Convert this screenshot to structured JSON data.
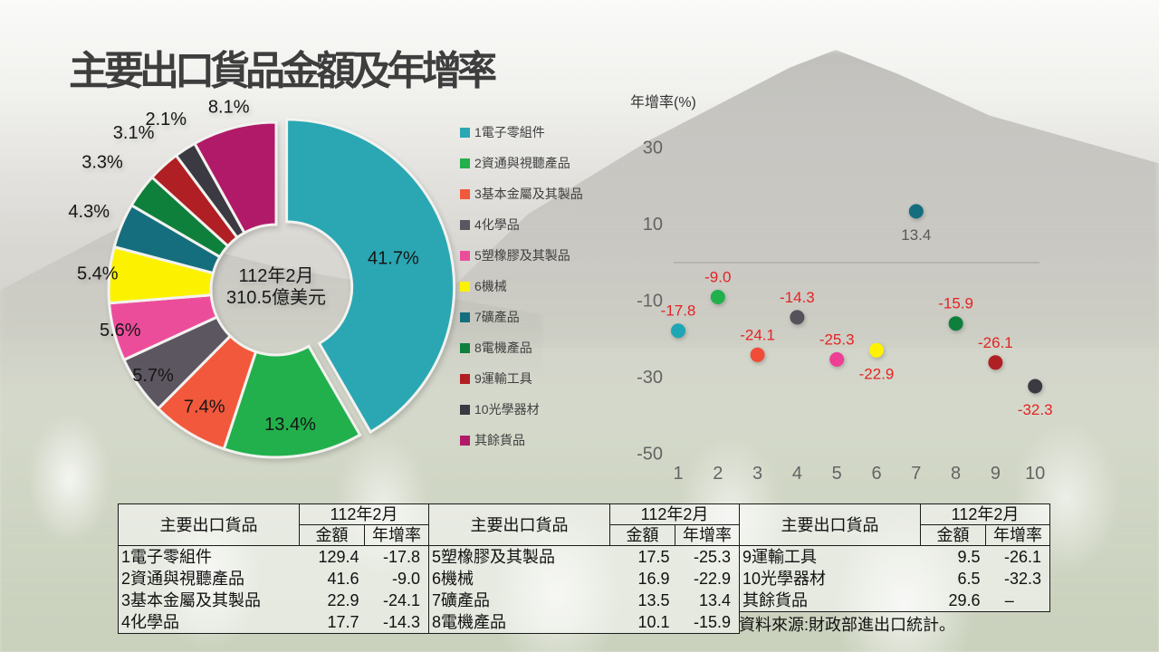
{
  "slide": {
    "title": "主要出口貨品金額及年增率"
  },
  "donut_center": {
    "line1": "112年2月",
    "line2": "310.5億美元"
  },
  "chart_data": [
    {
      "type": "pie",
      "subtype": "donut",
      "center_label_line1": "112年2月",
      "center_label_line2": "310.5億美元",
      "slices": [
        {
          "label": "1電子零組件",
          "pct": 41.7,
          "color": "#2AA7B3",
          "label_r": 122,
          "explode": 12
        },
        {
          "label": "2資通與視聽產品",
          "pct": 13.4,
          "color": "#22B04C",
          "label_r": 150,
          "explode": 0
        },
        {
          "label": "3基本金屬及其製品",
          "pct": 7.4,
          "color": "#F2583C",
          "label_r": 152,
          "explode": 0
        },
        {
          "label": "4化學品",
          "pct": 5.7,
          "color": "#5C5660",
          "label_r": 166,
          "explode": 0
        },
        {
          "label": "5塑橡膠及其製品",
          "pct": 5.6,
          "color": "#EC4D9B",
          "label_r": 178,
          "explode": 0
        },
        {
          "label": "6機械",
          "pct": 5.4,
          "color": "#FCF200",
          "label_r": 198,
          "explode": 0
        },
        {
          "label": "7礦產品",
          "pct": 4.3,
          "color": "#156E7D",
          "label_r": 224,
          "explode": 0
        },
        {
          "label": "8電機產品",
          "pct": 3.3,
          "color": "#0F7F3C",
          "label_r": 238,
          "explode": 0
        },
        {
          "label": "9運輸工具",
          "pct": 3.1,
          "color": "#B01F24",
          "label_r": 234,
          "explode": 0
        },
        {
          "label": "10光學器材",
          "pct": 2.1,
          "color": "#3B3A43",
          "label_r": 224,
          "explode": 0
        },
        {
          "label": "其餘貨品",
          "pct": 8.1,
          "color": "#B11A68",
          "label_r": 208,
          "explode": 0
        }
      ]
    },
    {
      "type": "scatter",
      "ylabel": "年增率(%)",
      "yticks": [
        30,
        10,
        -10,
        -30,
        -50
      ],
      "ylim": [
        -55,
        38
      ],
      "xticks": [
        1,
        2,
        3,
        4,
        5,
        6,
        7,
        8,
        9,
        10
      ],
      "grid": "zero-line-only",
      "neg_label_color": "#E32424",
      "points": [
        {
          "x": 1,
          "y": -17.8,
          "label": "-17.8",
          "color": "#1FA6B4",
          "label_pos": "above"
        },
        {
          "x": 2,
          "y": -9.0,
          "label": "-9.0",
          "color": "#22B04C",
          "label_pos": "above"
        },
        {
          "x": 3,
          "y": -24.1,
          "label": "-24.1",
          "color": "#F04C38",
          "label_pos": "above"
        },
        {
          "x": 4,
          "y": -14.3,
          "label": "-14.3",
          "color": "#55525B",
          "label_pos": "above"
        },
        {
          "x": 5,
          "y": -25.3,
          "label": "-25.3",
          "color": "#EE3E96",
          "label_pos": "above"
        },
        {
          "x": 6,
          "y": -22.9,
          "label": "-22.9",
          "color": "#FFF200",
          "label_pos": "below"
        },
        {
          "x": 7,
          "y": 13.4,
          "label": "13.4",
          "color": "#156E7D",
          "label_pos": "below",
          "label_color": "#595959"
        },
        {
          "x": 8,
          "y": -15.9,
          "label": "-15.9",
          "color": "#0F7F3C",
          "label_pos": "above"
        },
        {
          "x": 9,
          "y": -26.1,
          "label": "-26.1",
          "color": "#B01F24",
          "label_pos": "above"
        },
        {
          "x": 10,
          "y": -32.3,
          "label": "-32.3",
          "color": "#3B3A43",
          "label_pos": "below"
        }
      ]
    }
  ],
  "tables": [
    {
      "name_header": "主要出口貨品",
      "period_header": "112年2月",
      "col_headers": [
        "金額",
        "年增率"
      ],
      "rows": [
        [
          "1電子零組件",
          "129.4",
          "-17.8"
        ],
        [
          "2資通與視聽產品",
          "41.6",
          "-9.0"
        ],
        [
          "3基本金屬及其製品",
          "22.9",
          "-24.1"
        ],
        [
          "4化學品",
          "17.7",
          "-14.3"
        ]
      ]
    },
    {
      "name_header": "主要出口貨品",
      "period_header": "112年2月",
      "col_headers": [
        "金額",
        "年增率"
      ],
      "rows": [
        [
          "5塑橡膠及其製品",
          "17.5",
          "-25.3"
        ],
        [
          "6機械",
          "16.9",
          "-22.9"
        ],
        [
          "7礦產品",
          "13.5",
          "13.4"
        ],
        [
          "8電機產品",
          "10.1",
          "-15.9"
        ]
      ]
    },
    {
      "name_header": "主要出口貨品",
      "period_header": "112年2月",
      "col_headers": [
        "金額",
        "年增率"
      ],
      "rows": [
        [
          "9運輸工具",
          "9.5",
          "-26.1"
        ],
        [
          "10光學器材",
          "6.5",
          "-32.3"
        ],
        [
          "其餘貨品",
          "29.6",
          "–"
        ]
      ],
      "source_note": "資料來源:財政部進出口統計。"
    }
  ],
  "colors": {
    "title_text": "#3E3E3E",
    "axis_tick_text": "#646464",
    "scatter_label_negative": "#E32424",
    "scatter_label_positive": "#595959",
    "zero_line": "#ABA9A5"
  }
}
